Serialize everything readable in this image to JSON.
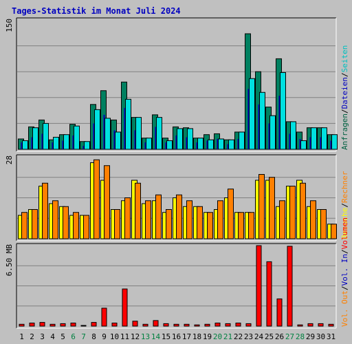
{
  "chart_data": {
    "type": "bar",
    "title": "Tages-Statistik im Monat Juli 2024",
    "days": [
      "1",
      "2",
      "3",
      "4",
      "5",
      "6",
      "7",
      "8",
      "9",
      "10",
      "11",
      "12",
      "13",
      "14",
      "15",
      "16",
      "17",
      "18",
      "19",
      "20",
      "21",
      "22",
      "23",
      "24",
      "25",
      "26",
      "27",
      "28",
      "29",
      "30",
      "31"
    ],
    "weekend_days": [
      "6",
      "7",
      "13",
      "14",
      "20",
      "21",
      "27",
      "28"
    ],
    "right_legend": {
      "top": [
        {
          "text": "Anfragen",
          "color": "#006040"
        },
        {
          "text": "Dateien",
          "color": "#0000c0"
        },
        {
          "text": "Seiten",
          "color": "#00c0c0"
        }
      ],
      "middle": [
        {
          "text": "Besuche",
          "color": "#ffff00"
        },
        {
          "text": "Rechner",
          "color": "#ff8000"
        }
      ],
      "bottom": [
        {
          "text": "Vol. Out",
          "color": "#ff8000"
        },
        {
          "text": "Vol. In",
          "color": "#0000c0"
        },
        {
          "text": "Volumen",
          "color": "#ff0000"
        }
      ]
    },
    "panels": [
      {
        "id": "top",
        "max_label": "150",
        "ymax": 150,
        "gridlines": 4,
        "series": [
          {
            "name": "Anfragen",
            "color": "#008060",
            "values": [
              12,
              26,
              34,
              11,
              17,
              29,
              9,
              52,
              68,
              34,
              78,
              37,
              13,
              40,
              13,
              26,
              25,
              13,
              17,
              18,
              11,
              20,
              134,
              90,
              49,
              105,
              32,
              20,
              25,
              25,
              17
            ]
          },
          {
            "name": "Dateien",
            "color": "#0000c0",
            "values": [
              8,
              14,
              18,
              8,
              10,
              16,
              4,
              30,
              40,
              22,
              48,
              22,
              8,
              26,
              8,
              16,
              14,
              8,
              10,
              12,
              6,
              12,
              70,
              52,
              30,
              62,
              18,
              12,
              14,
              14,
              10
            ]
          },
          {
            "name": "Seiten",
            "color": "#00e0e0",
            "values": [
              10,
              25,
              30,
              14,
              17,
              27,
              9,
              46,
              36,
              20,
              58,
              37,
              13,
              37,
              10,
              24,
              24,
              13,
              11,
              12,
              11,
              20,
              82,
              66,
              39,
              89,
              32,
              10,
              25,
              25,
              17
            ]
          }
        ]
      },
      {
        "id": "middle",
        "max_label": "28",
        "ymax": 28,
        "gridlines": 3,
        "series": [
          {
            "name": "Besuche",
            "color": "#ffff00",
            "values": [
              8,
              10,
              18,
              12,
              11,
              8,
              8,
              26,
              20,
              10,
              13,
              20,
              12,
              13,
              9,
              14,
              11,
              11,
              9,
              10,
              14,
              9,
              9,
              20,
              20,
              11,
              18,
              20,
              11,
              10,
              5
            ]
          },
          {
            "name": "Rechner",
            "color": "#ff8000",
            "values": [
              9,
              10,
              19,
              13,
              11,
              9,
              8,
              27,
              25,
              10,
              14,
              19,
              13,
              15,
              10,
              15,
              13,
              11,
              9,
              13,
              17,
              9,
              9,
              22,
              21,
              13,
              18,
              19,
              13,
              10,
              5
            ]
          }
        ]
      },
      {
        "id": "bottom",
        "max_label": "6.50 MB",
        "ymax": 6.5,
        "gridlines": 3,
        "series": [
          {
            "name": "Volumen",
            "color": "#ff0000",
            "values": [
              0.15,
              0.25,
              0.3,
              0.15,
              0.2,
              0.25,
              0.05,
              0.3,
              1.45,
              0.25,
              3.0,
              0.4,
              0.15,
              0.45,
              0.2,
              0.15,
              0.15,
              0.1,
              0.15,
              0.25,
              0.2,
              0.25,
              0.2,
              6.5,
              5.2,
              2.2,
              6.45,
              0.1,
              0.2,
              0.2,
              0.15
            ]
          }
        ]
      }
    ]
  }
}
